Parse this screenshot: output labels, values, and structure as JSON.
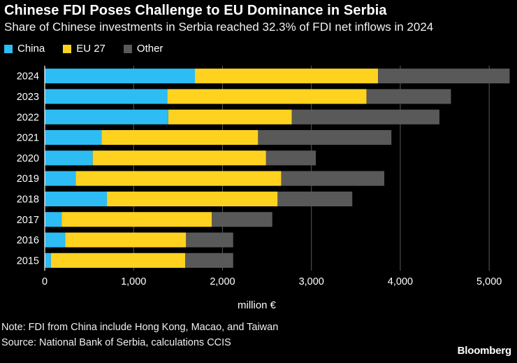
{
  "header": {
    "title": "Chinese FDI Poses Challenge to EU Dominance in Serbia",
    "subtitle": "Share of Chinese investments in Serbia reached 32.3% of FDI net inflows in 2024"
  },
  "colors": {
    "china": "#2dbcf4",
    "eu": "#ffd21f",
    "other": "#595959",
    "grid": "#5a5a5a",
    "background": "#000000"
  },
  "chart_data": {
    "type": "bar",
    "orientation": "horizontal",
    "stacked": true,
    "categories": [
      "2024",
      "2023",
      "2022",
      "2021",
      "2020",
      "2019",
      "2018",
      "2017",
      "2016",
      "2015"
    ],
    "series": [
      {
        "name": "China",
        "values": [
          1690,
          1380,
          1390,
          640,
          540,
          350,
          700,
          190,
          230,
          70
        ]
      },
      {
        "name": "EU 27",
        "values": [
          2060,
          2240,
          1390,
          1760,
          1950,
          2310,
          1920,
          1690,
          1360,
          1510
        ]
      },
      {
        "name": "Other",
        "values": [
          1480,
          950,
          1660,
          1500,
          560,
          1160,
          840,
          680,
          530,
          540
        ]
      }
    ],
    "xlim": [
      0,
      5250
    ],
    "xticks": [
      0,
      1000,
      2000,
      3000,
      4000,
      5000
    ],
    "xtick_labels": [
      "0",
      "1,000",
      "2,000",
      "3,000",
      "4,000",
      "5,000"
    ],
    "xlabel": "million €",
    "grid": "vertical",
    "legend_position": "top-left"
  },
  "footer": {
    "note": "Note: FDI from China include Hong Kong, Macao, and Taiwan",
    "source": "Source: National Bank of Serbia, calculations CCIS",
    "brand": "Bloomberg"
  }
}
